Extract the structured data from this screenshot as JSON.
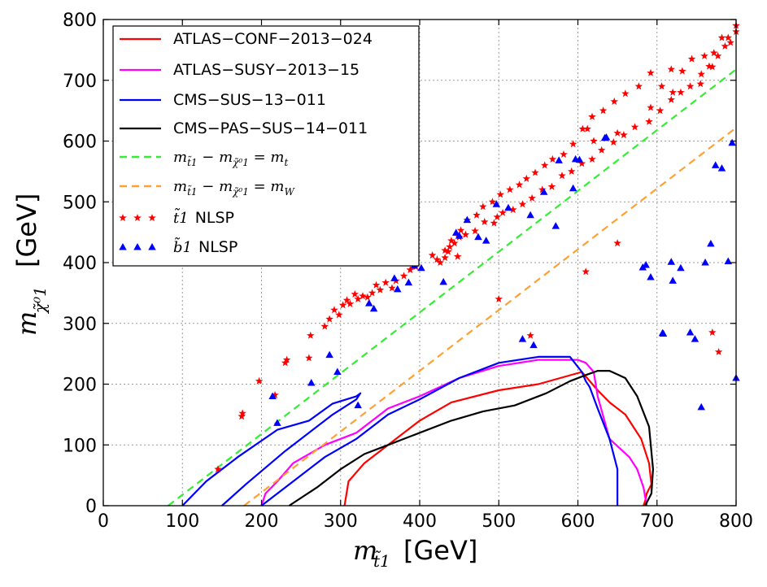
{
  "chart_data": {
    "type": "scatter",
    "title": "",
    "xlabel": {
      "symbol": "m",
      "subscript": "t̃1",
      "unit": "[GeV]"
    },
    "ylabel": {
      "symbol": "m",
      "subscript": "χ̃⁰1",
      "unit": "[GeV]"
    },
    "xlim": [
      0,
      800
    ],
    "ylim": [
      0,
      800
    ],
    "xticks": [
      0,
      100,
      200,
      300,
      400,
      500,
      600,
      700,
      800
    ],
    "yticks": [
      0,
      100,
      200,
      300,
      400,
      500,
      600,
      700,
      800
    ],
    "grid": true,
    "legend_position": "top-left",
    "legend": [
      {
        "label": "ATLAS−CONF−2013−024",
        "kind": "line",
        "color": "#ff0000"
      },
      {
        "label": "ATLAS−SUSY−2013−15",
        "kind": "line",
        "color": "#ff00ff"
      },
      {
        "label": "CMS−SUS−13−011",
        "kind": "line",
        "color": "#0000ff"
      },
      {
        "label": "CMS−PAS−SUS−14−011",
        "kind": "line",
        "color": "#000000"
      },
      {
        "label": "m_t̃1 − m_χ̃⁰1 = m_t",
        "kind": "dashed",
        "color": "#33ee33",
        "math": [
          "m",
          "t̃1",
          " − ",
          "m",
          "χ̃⁰1",
          " = ",
          "m",
          "t"
        ]
      },
      {
        "label": "m_t̃1 − m_χ̃⁰1 = m_W",
        "kind": "dashed",
        "color": "#ffa033",
        "math": [
          "m",
          "t̃1",
          " − ",
          "m",
          "χ̃⁰1",
          " = ",
          "m",
          "W"
        ]
      },
      {
        "label": "NLSP",
        "kind": "star",
        "color": "#ff0000",
        "symbol": "t̃1"
      },
      {
        "label": "NLSP",
        "kind": "triangle",
        "color": "#0000ff",
        "symbol": "b̃1"
      }
    ],
    "series": [
      {
        "name": "ATLAS-CONF-2013-024",
        "color": "#ff0000",
        "x": [
          305,
          310,
          330,
          360,
          400,
          440,
          500,
          550,
          605,
          625,
          640,
          660,
          665,
          680,
          690,
          693,
          687,
          685,
          683
        ],
        "y": [
          0,
          40,
          70,
          100,
          140,
          170,
          190,
          200,
          220,
          190,
          170,
          150,
          140,
          110,
          70,
          35,
          20,
          8,
          0
        ]
      },
      {
        "name": "ATLAS-SUSY-2013-15",
        "color": "#ff00ff",
        "x": [
          200,
          205,
          220,
          240,
          280,
          320,
          360,
          400,
          450,
          500,
          550,
          600,
          610,
          620,
          625,
          640,
          665,
          675,
          683,
          687
        ],
        "y": [
          0,
          20,
          40,
          70,
          100,
          120,
          160,
          180,
          210,
          230,
          240,
          240,
          235,
          220,
          180,
          110,
          80,
          60,
          30,
          0
        ]
      },
      {
        "name": "CMS-SUS-13-011 (lower region)",
        "color": "#0000ff",
        "x": [
          200,
          240,
          280,
          320,
          360,
          400,
          450,
          500,
          550,
          590,
          605,
          610,
          615,
          625,
          640,
          650,
          650
        ],
        "y": [
          0,
          40,
          80,
          110,
          150,
          175,
          210,
          235,
          245,
          245,
          220,
          205,
          195,
          160,
          110,
          60,
          0
        ]
      },
      {
        "name": "CMS-SUS-13-011 (diagonal strip)",
        "color": "#0000ff",
        "x": [
          100,
          130,
          170,
          220,
          260,
          290,
          320,
          325,
          320,
          290,
          230,
          180,
          150
        ],
        "y": [
          0,
          40,
          80,
          125,
          140,
          168,
          180,
          185,
          175,
          150,
          90,
          35,
          0
        ]
      },
      {
        "name": "CMS-PAS-SUS-14-011",
        "color": "#000000",
        "x": [
          235,
          270,
          300,
          330,
          360,
          400,
          440,
          480,
          520,
          560,
          590,
          610,
          625,
          640,
          660,
          675,
          690,
          695,
          693,
          685
        ],
        "y": [
          0,
          30,
          60,
          85,
          100,
          120,
          140,
          155,
          165,
          185,
          205,
          215,
          222,
          222,
          210,
          180,
          130,
          60,
          20,
          0
        ]
      },
      {
        "name": "m_t line",
        "color": "#33ee33",
        "dashed": true,
        "x": [
          82,
          800
        ],
        "y": [
          0,
          718
        ]
      },
      {
        "name": "m_W line",
        "color": "#ffa033",
        "dashed": true,
        "x": [
          178,
          800
        ],
        "y": [
          0,
          622
        ]
      }
    ],
    "stop_nlsp_points": {
      "color": "#ff0000",
      "x": [
        145,
        175,
        176,
        197,
        217,
        230,
        232,
        260,
        262,
        280,
        286,
        292,
        298,
        303,
        308,
        312,
        318,
        322,
        328,
        334,
        340,
        345,
        350,
        357,
        365,
        370,
        380,
        388,
        395,
        432,
        436,
        440,
        450,
        458,
        470,
        482,
        494,
        505,
        518,
        530,
        542,
        555,
        567,
        580,
        592,
        605,
        618,
        630,
        645,
        658,
        672,
        690,
        704,
        718,
        730,
        742,
        756,
        766,
        777,
        786,
        793,
        800,
        426,
        432,
        438,
        444,
        452,
        460,
        472,
        480,
        492,
        502,
        514,
        526,
        535,
        546,
        558,
        568,
        582,
        594,
        606,
        618,
        632,
        646,
        660,
        677,
        692,
        706,
        718,
        732,
        744,
        760,
        772,
        790,
        800,
        416,
        422,
        448,
        498,
        612,
        620,
        650,
        692,
        720,
        755,
        770,
        782,
        500,
        540,
        610,
        650,
        770,
        778
      ],
      "y": [
        60,
        147,
        152,
        205,
        182,
        235,
        240,
        243,
        280,
        295,
        307,
        322,
        314,
        330,
        338,
        332,
        348,
        340,
        345,
        343,
        350,
        363,
        355,
        367,
        358,
        370,
        378,
        388,
        393,
        420,
        418,
        436,
        442,
        446,
        452,
        467,
        465,
        482,
        487,
        496,
        506,
        520,
        525,
        543,
        550,
        563,
        570,
        585,
        598,
        610,
        623,
        632,
        650,
        668,
        680,
        690,
        710,
        723,
        740,
        756,
        762,
        790,
        400,
        408,
        426,
        432,
        453,
        470,
        478,
        492,
        500,
        512,
        520,
        528,
        538,
        548,
        560,
        570,
        578,
        595,
        620,
        640,
        650,
        665,
        678,
        690,
        712,
        690,
        718,
        715,
        735,
        740,
        745,
        770,
        780,
        412,
        405,
        410,
        475,
        620,
        600,
        613,
        655,
        680,
        694,
        722,
        770,
        340,
        280,
        385,
        432,
        285,
        253
      ],
      "legend_marker": "star"
    },
    "sbottom_nlsp_points": {
      "color": "#0000ff",
      "x": [
        214,
        220,
        263,
        286,
        296,
        322,
        336,
        342,
        368,
        372,
        386,
        393,
        402,
        430,
        446,
        450,
        460,
        474,
        484,
        497,
        512,
        530,
        540,
        544,
        557,
        572,
        576,
        594,
        597,
        602,
        634,
        636,
        682,
        686,
        692,
        707,
        708,
        718,
        720,
        730,
        742,
        748,
        756,
        761,
        768,
        774,
        782,
        790,
        795,
        800
      ],
      "y": [
        180,
        136,
        202,
        248,
        220,
        165,
        333,
        324,
        374,
        356,
        367,
        395,
        391,
        368,
        449,
        444,
        470,
        442,
        436,
        496,
        490,
        274,
        478,
        264,
        516,
        460,
        568,
        522,
        570,
        569,
        605,
        606,
        392,
        396,
        376,
        284,
        283,
        401,
        370,
        391,
        285,
        274,
        162,
        400,
        431,
        560,
        555,
        402,
        597,
        210
      ],
      "legend_marker": "triangle"
    }
  }
}
